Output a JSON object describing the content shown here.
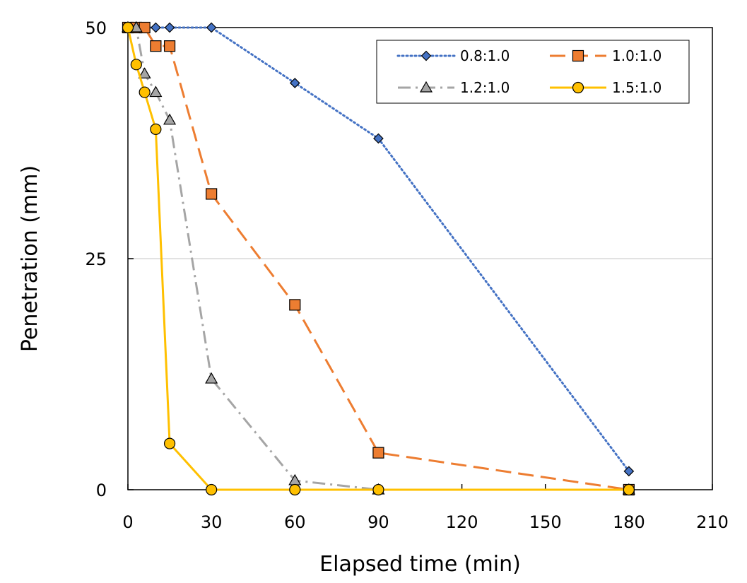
{
  "chart_data": {
    "type": "line",
    "xlabel": "Elapsed time (min)",
    "ylabel": "Penetration (mm)",
    "xlim": [
      0,
      210
    ],
    "ylim": [
      0,
      50
    ],
    "xticks": [
      0,
      30,
      60,
      90,
      120,
      150,
      180,
      210
    ],
    "yticks": [
      0,
      25,
      50
    ],
    "xtick_labels": [
      "0",
      "30",
      "60",
      "90",
      "120",
      "150",
      "180",
      "210"
    ],
    "ytick_labels": [
      "0",
      "25",
      "50"
    ],
    "grid": "horizontal",
    "legend_position": "top-right",
    "series": [
      {
        "name": "0.8:1.0",
        "color": "#4472C4",
        "line_style": "dotted",
        "marker": "diamond",
        "marker_color": "#4472C4",
        "x": [
          0,
          3,
          6,
          10,
          15,
          30,
          60,
          90,
          180
        ],
        "y": [
          50,
          50,
          50,
          50,
          50,
          50,
          44,
          38,
          2
        ]
      },
      {
        "name": "1.0:1.0",
        "color": "#ED7D31",
        "line_style": "dashed",
        "marker": "square",
        "marker_color": "#ED7D31",
        "x": [
          0,
          3,
          6,
          10,
          15,
          30,
          60,
          90,
          180
        ],
        "y": [
          50,
          50,
          50,
          48,
          48,
          32,
          20,
          4,
          0
        ]
      },
      {
        "name": "1.2:1.0",
        "color": "#A5A5A5",
        "line_style": "dashdot",
        "marker": "triangle",
        "marker_color": "#A5A5A5",
        "x": [
          0,
          3,
          6,
          10,
          15,
          30,
          60,
          90,
          180
        ],
        "y": [
          50,
          50,
          45,
          43,
          40,
          12,
          1,
          0,
          0
        ]
      },
      {
        "name": "1.5:1.0",
        "color": "#FFC000",
        "line_style": "solid",
        "marker": "circle",
        "marker_color": "#FFC000",
        "x": [
          0,
          3,
          6,
          10,
          15,
          30,
          60,
          90,
          180
        ],
        "y": [
          50,
          46,
          43,
          39,
          5,
          0,
          0,
          0,
          0
        ]
      }
    ]
  }
}
